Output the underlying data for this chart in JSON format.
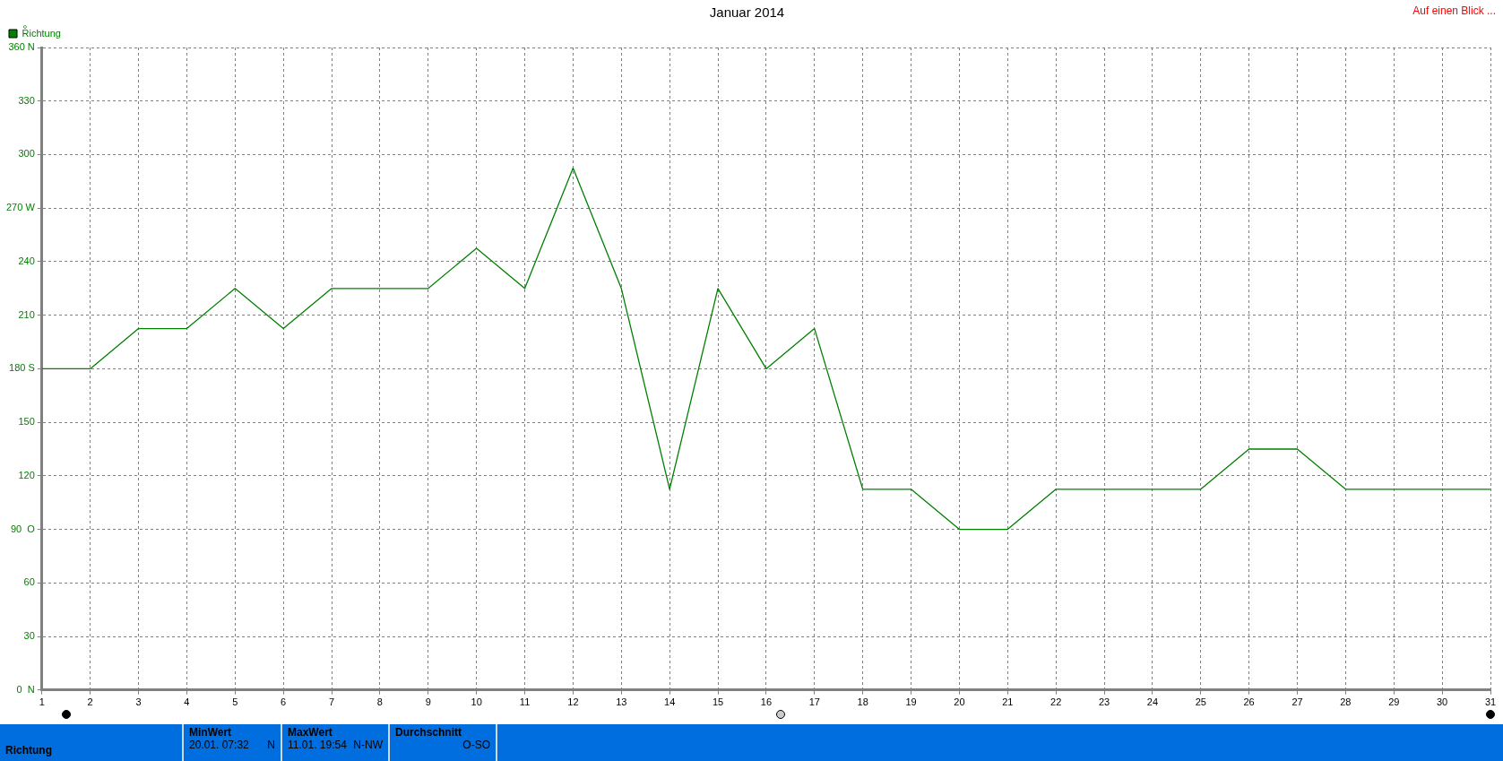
{
  "chart_data": {
    "type": "line",
    "title": "Januar 2014",
    "ylabel": "°",
    "annotations": [
      "Auf einen Blick ...",
      "Richtung",
      "MinWert",
      "20.01.  07:32",
      "N",
      "MaxWert",
      "11.01.  19:54",
      "N-NW",
      "Durchschnitt",
      "O-SO"
    ],
    "x": [
      1,
      2,
      3,
      4,
      5,
      6,
      7,
      8,
      9,
      10,
      11,
      12,
      13,
      14,
      15,
      16,
      17,
      18,
      19,
      20,
      21,
      22,
      23,
      24,
      25,
      26,
      27,
      28,
      29,
      30,
      31
    ],
    "series": [
      {
        "name": "Richtung",
        "color": "#008000",
        "values": [
          180,
          180,
          202.5,
          202.5,
          225,
          202.5,
          225,
          225,
          225,
          247.5,
          225,
          292.5,
          225,
          112.5,
          225,
          180,
          202.5,
          112.5,
          112.5,
          90,
          90,
          112.5,
          112.5,
          112.5,
          112.5,
          135,
          135,
          112.5,
          112.5,
          112.5,
          112.5
        ]
      }
    ],
    "xlim": [
      1,
      31
    ],
    "xticks": [
      1,
      2,
      3,
      4,
      5,
      6,
      7,
      8,
      9,
      10,
      11,
      12,
      13,
      14,
      15,
      16,
      17,
      18,
      19,
      20,
      21,
      22,
      23,
      24,
      25,
      26,
      27,
      28,
      29,
      30,
      31
    ],
    "ylim": [
      0,
      360
    ],
    "yticks": [
      {
        "value": 0,
        "label": "0  N"
      },
      30,
      60,
      {
        "value": 90,
        "label": "90  O"
      },
      120,
      150,
      {
        "value": 180,
        "label": "180 S"
      },
      210,
      240,
      {
        "value": 270,
        "label": "270 W"
      },
      300,
      330,
      {
        "value": 360,
        "label": "360 N"
      }
    ],
    "grid": true,
    "legend": "top left",
    "marker": "none",
    "line_style": "solid"
  }
}
